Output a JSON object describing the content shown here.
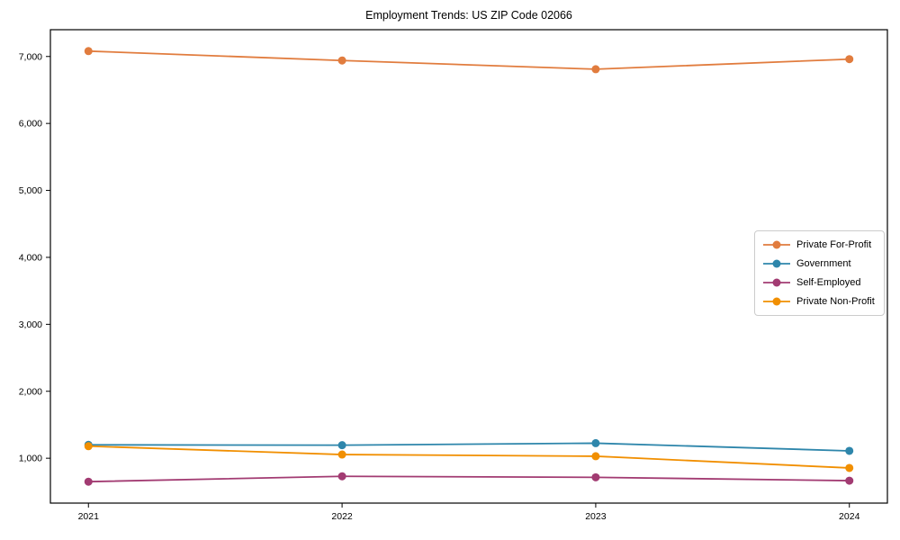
{
  "title": "Employment Trends: US ZIP Code 02066",
  "chart_data": {
    "type": "line",
    "title": "Employment Trends: US ZIP Code 02066",
    "categories": [
      "2021",
      "2022",
      "2023",
      "2024"
    ],
    "series": [
      {
        "name": "Private For-Profit",
        "color": "#E17C3E",
        "values": [
          7080,
          6940,
          6810,
          6960
        ]
      },
      {
        "name": "Government",
        "color": "#2E86AB",
        "values": [
          1200,
          1195,
          1225,
          1110
        ]
      },
      {
        "name": "Self-Employed",
        "color": "#A23B72",
        "values": [
          650,
          730,
          715,
          665
        ]
      },
      {
        "name": "Private Non-Profit",
        "color": "#F18F01",
        "values": [
          1180,
          1055,
          1030,
          855
        ]
      }
    ],
    "xlabel": "",
    "ylabel": "",
    "ylim": [
      330,
      7400
    ],
    "yticks": [
      1000,
      2000,
      3000,
      4000,
      5000,
      6000,
      7000
    ],
    "ytick_labels": [
      "1,000",
      "2,000",
      "3,000",
      "4,000",
      "5,000",
      "6,000",
      "7,000"
    ],
    "grid": false,
    "legend_position": "right-middle",
    "marker": "circle",
    "axis_color": "#000000",
    "background_color": "#ffffff"
  }
}
